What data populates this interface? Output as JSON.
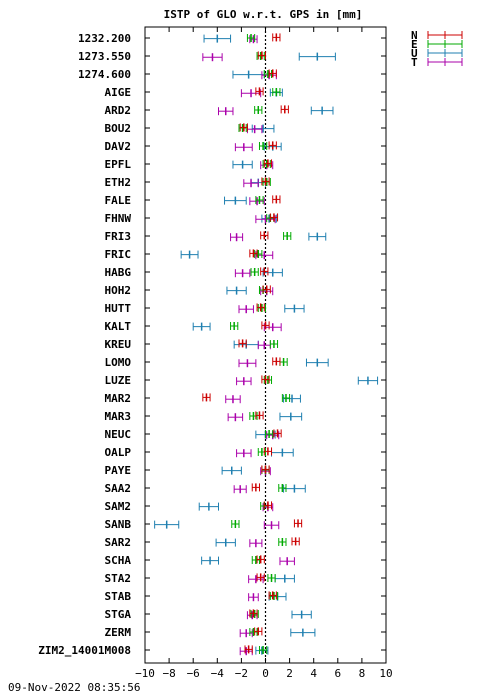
{
  "chart_data": {
    "type": "errorbar",
    "title": "ISTP of GLO w.r.t. GPS in [mm]",
    "xlim": [
      -10,
      10
    ],
    "xticks": [
      "−10",
      "−8",
      "−6",
      "−4",
      "−2",
      "0",
      "2",
      "4",
      "6",
      "8",
      "10"
    ],
    "legend_placement": "top-right-outside",
    "series": [
      {
        "name": "N",
        "color": "#cc0000"
      },
      {
        "name": "E",
        "color": "#00aa00"
      },
      {
        "name": "U",
        "color": "#1f7fb0"
      },
      {
        "name": "T",
        "color": "#aa00aa"
      }
    ],
    "categories": [
      "1232.200",
      "1273.550",
      "1274.600",
      "AIGE",
      "ARD2",
      "BOU2",
      "DAV2",
      "EPFL",
      "ETH2",
      "FALE",
      "FHNW",
      "FRI3",
      "FRIC",
      "HABG",
      "HOH2",
      "HUTT",
      "KALT",
      "KREU",
      "LOMO",
      "LUZE",
      "MAR2",
      "MAR3",
      "NEUC",
      "OALP",
      "PAYE",
      "SAA2",
      "SAM2",
      "SANB",
      "SAR2",
      "SCHA",
      "STA2",
      "STAB",
      "STGA",
      "ZERM",
      "ZIM2_14001M008"
    ],
    "rows": [
      {
        "N": [
          0.9,
          0.3
        ],
        "E": [
          -1.2,
          0.3
        ],
        "U": [
          -4.0,
          1.1
        ],
        "T": [
          -1.0,
          0.3
        ]
      },
      {
        "N": [
          -0.3,
          0.3
        ],
        "E": [
          -0.4,
          0.3
        ],
        "U": [
          4.3,
          1.5
        ],
        "T": [
          -4.4,
          0.8
        ]
      },
      {
        "N": [
          0.6,
          0.3
        ],
        "E": [
          0.2,
          0.3
        ],
        "U": [
          -1.4,
          1.3
        ],
        "T": [
          0.3,
          0.6
        ]
      },
      {
        "N": [
          -0.5,
          0.3
        ],
        "E": [
          0.9,
          0.3
        ],
        "U": [
          0.9,
          0.5
        ],
        "T": [
          -1.2,
          0.8
        ]
      },
      {
        "N": [
          1.6,
          0.3
        ],
        "E": [
          -0.6,
          0.3
        ],
        "U": [
          4.7,
          0.9
        ],
        "T": [
          -3.3,
          0.6
        ]
      },
      {
        "N": [
          -1.8,
          0.3
        ],
        "E": [
          -1.9,
          0.3
        ],
        "U": [
          -0.2,
          0.9
        ],
        "T": [
          -0.9,
          0.6
        ]
      },
      {
        "N": [
          0.6,
          0.3
        ],
        "E": [
          -0.2,
          0.3
        ],
        "U": [
          0.6,
          0.7
        ],
        "T": [
          -1.8,
          0.7
        ]
      },
      {
        "N": [
          0.2,
          0.3
        ],
        "E": [
          0.1,
          0.3
        ],
        "U": [
          -1.9,
          0.8
        ],
        "T": [
          0.1,
          0.5
        ]
      },
      {
        "N": [
          0.0,
          0.3
        ],
        "E": [
          0.1,
          0.3
        ],
        "U": [
          -0.6,
          0.6
        ],
        "T": [
          -1.2,
          0.6
        ]
      },
      {
        "N": [
          0.9,
          0.3
        ],
        "E": [
          -0.5,
          0.3
        ],
        "U": [
          -2.5,
          0.9
        ],
        "T": [
          -0.7,
          0.6
        ]
      },
      {
        "N": [
          0.7,
          0.3
        ],
        "E": [
          0.4,
          0.3
        ],
        "U": [
          0.3,
          0.6
        ],
        "T": [
          0.0,
          0.8
        ]
      },
      {
        "N": [
          -0.1,
          0.3
        ],
        "E": [
          1.8,
          0.3
        ],
        "U": [
          4.3,
          0.7
        ],
        "T": [
          -2.4,
          0.5
        ]
      },
      {
        "N": [
          -1.0,
          0.3
        ],
        "E": [
          -0.6,
          0.3
        ],
        "U": [
          -6.3,
          0.7
        ],
        "T": [
          -0.1,
          0.7
        ]
      },
      {
        "N": [
          -0.1,
          0.3
        ],
        "E": [
          -0.9,
          0.3
        ],
        "U": [
          0.6,
          0.8
        ],
        "T": [
          -1.9,
          0.6
        ]
      },
      {
        "N": [
          0.1,
          0.3
        ],
        "E": [
          -0.2,
          0.3
        ],
        "U": [
          -2.4,
          0.8
        ],
        "T": [
          0.1,
          0.5
        ]
      },
      {
        "N": [
          -0.4,
          0.3
        ],
        "E": [
          -0.3,
          0.3
        ],
        "U": [
          2.4,
          0.8
        ],
        "T": [
          -1.6,
          0.6
        ]
      },
      {
        "N": [
          0.0,
          0.3
        ],
        "E": [
          -2.6,
          0.3
        ],
        "U": [
          -5.3,
          0.7
        ],
        "T": [
          0.6,
          0.7
        ]
      },
      {
        "N": [
          -1.9,
          0.3
        ],
        "E": [
          0.7,
          0.3
        ],
        "U": [
          -1.6,
          1.0
        ],
        "T": [
          -0.1,
          0.5
        ]
      },
      {
        "N": [
          0.9,
          0.3
        ],
        "E": [
          1.5,
          0.3
        ],
        "U": [
          4.3,
          0.9
        ],
        "T": [
          -1.5,
          0.7
        ]
      },
      {
        "N": [
          0.0,
          0.3
        ],
        "E": [
          0.2,
          0.3
        ],
        "U": [
          8.5,
          0.8
        ],
        "T": [
          -1.8,
          0.6
        ]
      },
      {
        "N": [
          -4.9,
          0.3
        ],
        "E": [
          1.7,
          0.3
        ],
        "U": [
          2.2,
          0.7
        ],
        "T": [
          -2.7,
          0.6
        ]
      },
      {
        "N": [
          -0.5,
          0.3
        ],
        "E": [
          -1.0,
          0.3
        ],
        "U": [
          2.1,
          0.9
        ],
        "T": [
          -2.5,
          0.6
        ]
      },
      {
        "N": [
          1.0,
          0.3
        ],
        "E": [
          0.3,
          0.3
        ],
        "U": [
          0.0,
          0.8
        ],
        "T": [
          0.6,
          0.5
        ]
      },
      {
        "N": [
          0.2,
          0.3
        ],
        "E": [
          -0.3,
          0.3
        ],
        "U": [
          1.4,
          0.9
        ],
        "T": [
          -1.8,
          0.6
        ]
      },
      {
        "N": [
          0.0,
          0.3
        ],
        "E": [
          0.0,
          0.3
        ],
        "U": [
          -2.8,
          0.8
        ],
        "T": [
          0.0,
          0.4
        ]
      },
      {
        "N": [
          -0.8,
          0.3
        ],
        "E": [
          1.4,
          0.3
        ],
        "U": [
          2.4,
          0.9
        ],
        "T": [
          -2.1,
          0.5
        ]
      },
      {
        "N": [
          0.2,
          0.3
        ],
        "E": [
          -0.1,
          0.3
        ],
        "U": [
          -4.7,
          0.8
        ],
        "T": [
          0.2,
          0.4
        ]
      },
      {
        "N": [
          2.7,
          0.3
        ],
        "E": [
          -2.5,
          0.3
        ],
        "U": [
          -8.2,
          1.0
        ],
        "T": [
          0.5,
          0.6
        ]
      },
      {
        "N": [
          2.5,
          0.3
        ],
        "E": [
          1.4,
          0.3
        ],
        "U": [
          -3.3,
          0.8
        ],
        "T": [
          -0.8,
          0.5
        ]
      },
      {
        "N": [
          -0.4,
          0.3
        ],
        "E": [
          -0.8,
          0.3
        ],
        "U": [
          -4.6,
          0.7
        ],
        "T": [
          1.8,
          0.6
        ]
      },
      {
        "N": [
          -0.4,
          0.3
        ],
        "E": [
          0.5,
          0.3
        ],
        "U": [
          1.6,
          0.8
        ],
        "T": [
          -0.8,
          0.6
        ]
      },
      {
        "N": [
          0.6,
          0.3
        ],
        "E": [
          0.7,
          0.3
        ],
        "U": [
          1.0,
          0.7
        ],
        "T": [
          -1.0,
          0.4
        ]
      },
      {
        "N": [
          -1.0,
          0.3
        ],
        "E": [
          -0.9,
          0.3
        ],
        "U": [
          3.0,
          0.8
        ],
        "T": [
          -1.1,
          0.4
        ]
      },
      {
        "N": [
          -0.6,
          0.3
        ],
        "E": [
          -1.0,
          0.3
        ],
        "U": [
          3.1,
          1.0
        ],
        "T": [
          -1.6,
          0.5
        ]
      },
      {
        "N": [
          -1.4,
          0.3
        ],
        "E": [
          -0.2,
          0.3
        ],
        "U": [
          -0.3,
          0.5
        ],
        "T": [
          -1.6,
          0.5
        ]
      }
    ]
  },
  "footer": {
    "timestamp": "09-Nov-2022 08:35:56"
  }
}
